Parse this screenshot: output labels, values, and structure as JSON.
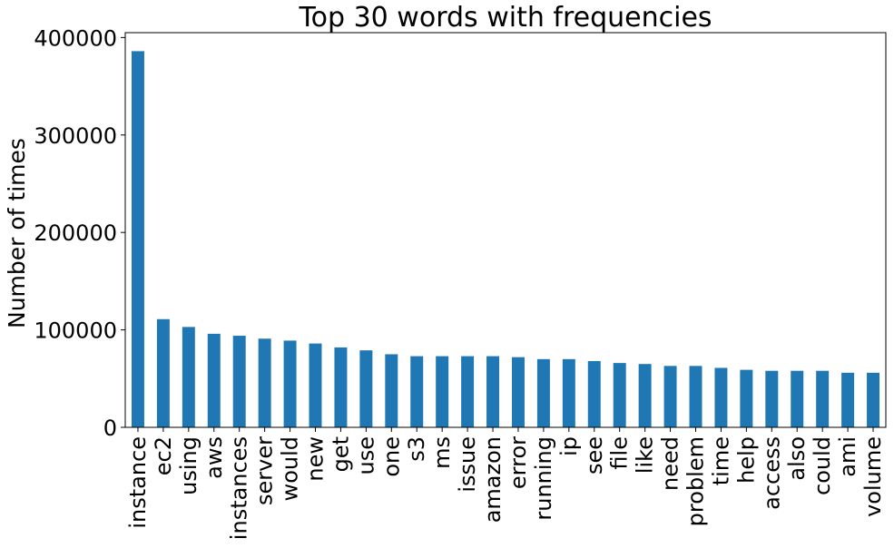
{
  "chart_data": {
    "type": "bar",
    "title": "Top 30 words with frequencies",
    "xlabel": "",
    "ylabel": "Number of times",
    "ylim": [
      0,
      405000
    ],
    "yticks": [
      "0",
      "100000",
      "200000",
      "300000",
      "400000"
    ],
    "grid": false,
    "bar_color": "#1f77b4",
    "categories": [
      "instance",
      "ec2",
      "using",
      "aws",
      "instances",
      "server",
      "would",
      "new",
      "get",
      "use",
      "one",
      "s3",
      "ms",
      "issue",
      "amazon",
      "error",
      "running",
      "ip",
      "see",
      "file",
      "like",
      "need",
      "problem",
      "time",
      "help",
      "access",
      "also",
      "could",
      "ami",
      "volume"
    ],
    "values": [
      386000,
      111000,
      103000,
      96000,
      94000,
      91000,
      89000,
      86000,
      82000,
      79000,
      75000,
      73000,
      73000,
      73000,
      73000,
      72000,
      70000,
      70000,
      68000,
      66000,
      65000,
      63000,
      63000,
      61000,
      59000,
      58000,
      58000,
      58000,
      56000,
      56000
    ]
  }
}
